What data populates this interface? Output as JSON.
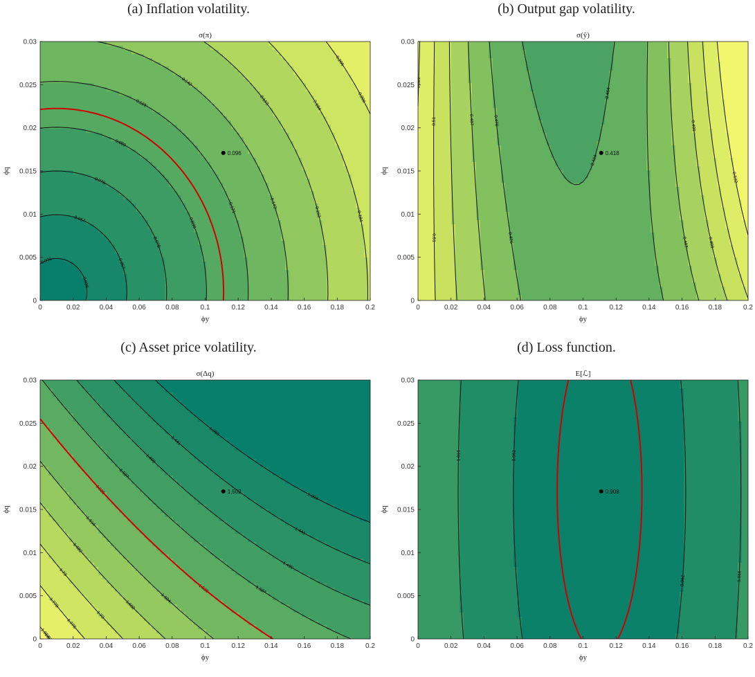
{
  "figure": {
    "panels": [
      {
        "caption": "(a) Inflation volatility.",
        "title": "σ(π)",
        "xlabel": "ϕy",
        "ylabel": "ϕq"
      },
      {
        "caption": "(b) Output gap volatility.",
        "title": "σ(ŷ)",
        "xlabel": "ϕy",
        "ylabel": "ϕq"
      },
      {
        "caption": "(c) Asset price volatility.",
        "title": "σ(Δq)",
        "xlabel": "ϕy",
        "ylabel": "ϕq"
      },
      {
        "caption": "(d) Loss function.",
        "title": "E[ℒ]",
        "xlabel": "ϕy",
        "ylabel": "ϕq"
      }
    ]
  },
  "chart_data": [
    {
      "type": "contour",
      "title": "σ(π)",
      "xlabel": "ϕy",
      "ylabel": "ϕq",
      "xlim": [
        0,
        0.2
      ],
      "ylim": [
        0,
        0.03
      ],
      "x_ticks": [
        "0",
        "0.02",
        "0.04",
        "0.06",
        "0.08",
        "0.1",
        "0.12",
        "0.14",
        "0.16",
        "0.18",
        "0.2"
      ],
      "y_ticks": [
        "0",
        "0.005",
        "0.01",
        "0.015",
        "0.02",
        "0.025",
        "0.03"
      ],
      "colormap": [
        "#007b6b",
        "#2e9464",
        "#6cb560",
        "#c3e05e",
        "#fafa6e"
      ],
      "value_range": [
        0.02,
        0.24
      ],
      "contour_levels": [
        0.036,
        0.057,
        0.078,
        0.099,
        0.121,
        0.142,
        0.163,
        0.184,
        0.206,
        0.227
      ],
      "highlight_contour": {
        "value": 0.108,
        "color": "#d00000"
      },
      "marked_point": {
        "x": 0.111,
        "y": 0.0171,
        "label": "0.096"
      }
    },
    {
      "type": "contour",
      "title": "σ(ŷ)",
      "xlabel": "ϕy",
      "ylabel": "ϕq",
      "xlim": [
        0,
        0.2
      ],
      "ylim": [
        0,
        0.03
      ],
      "x_ticks": [
        "0",
        "0.02",
        "0.04",
        "0.06",
        "0.08",
        "0.1",
        "0.12",
        "0.14",
        "0.16",
        "0.18",
        "0.2"
      ],
      "y_ticks": [
        "0",
        "0.005",
        "0.01",
        "0.015",
        "0.02",
        "0.025",
        "0.03"
      ],
      "colormap": [
        "#007b6b",
        "#2e9464",
        "#6cb560",
        "#c3e05e",
        "#fafa6e"
      ],
      "value_range": [
        0.418,
        0.53
      ],
      "contour_levels": [
        0.407,
        0.418,
        0.43,
        0.441,
        0.453,
        0.464,
        0.476,
        0.487,
        0.499,
        0.51,
        0.522
      ],
      "highlight_contour": {
        "value": 0.42,
        "color": "#d00000"
      },
      "marked_point": {
        "x": 0.111,
        "y": 0.0171,
        "label": "0.418"
      }
    },
    {
      "type": "contour",
      "title": "σ(Δq)",
      "xlabel": "ϕy",
      "ylabel": "ϕq",
      "xlim": [
        0,
        0.2
      ],
      "ylim": [
        0,
        0.03
      ],
      "x_ticks": [
        "0",
        "0.02",
        "0.04",
        "0.06",
        "0.08",
        "0.1",
        "0.12",
        "0.14",
        "0.16",
        "0.18",
        "0.2"
      ],
      "y_ticks": [
        "0",
        "0.005",
        "0.01",
        "0.015",
        "0.02",
        "0.025",
        "0.03"
      ],
      "colormap": [
        "#007b6b",
        "#2e9464",
        "#6cb560",
        "#c3e05e",
        "#fafa6e"
      ],
      "value_range": [
        1.35,
        1.85
      ],
      "contour_levels": [
        1.393,
        1.441,
        1.489,
        1.537,
        1.585,
        1.634,
        1.682,
        1.73,
        1.778,
        1.826
      ],
      "highlight_contour": {
        "value": 1.585,
        "color": "#d00000"
      },
      "marked_point": {
        "x": 0.111,
        "y": 0.0171,
        "label": "1.502"
      }
    },
    {
      "type": "contour",
      "title": "E[ℒ]",
      "xlabel": "ϕy",
      "ylabel": "ϕq",
      "xlim": [
        0,
        0.2
      ],
      "ylim": [
        0,
        0.03
      ],
      "x_ticks": [
        "0",
        "0.02",
        "0.04",
        "0.06",
        "0.08",
        "0.1",
        "0.12",
        "0.14",
        "0.16",
        "0.18",
        "0.2"
      ],
      "y_ticks": [
        "0",
        "0.005",
        "0.01",
        "0.015",
        "0.02",
        "0.025",
        "0.03"
      ],
      "colormap": [
        "#007b6b",
        "#2e9464",
        "#6cb560",
        "#c3e05e",
        "#fafa6e"
      ],
      "value_range": [
        0.9,
        1.4
      ],
      "contour_levels": [
        0.962,
        1.016,
        1.07,
        1.124,
        1.178,
        1.232,
        1.286,
        1.34
      ],
      "highlight_contour": {
        "value": 0.928,
        "color": "#d00000"
      },
      "marked_point": {
        "x": 0.111,
        "y": 0.0171,
        "label": "0.908"
      }
    }
  ]
}
